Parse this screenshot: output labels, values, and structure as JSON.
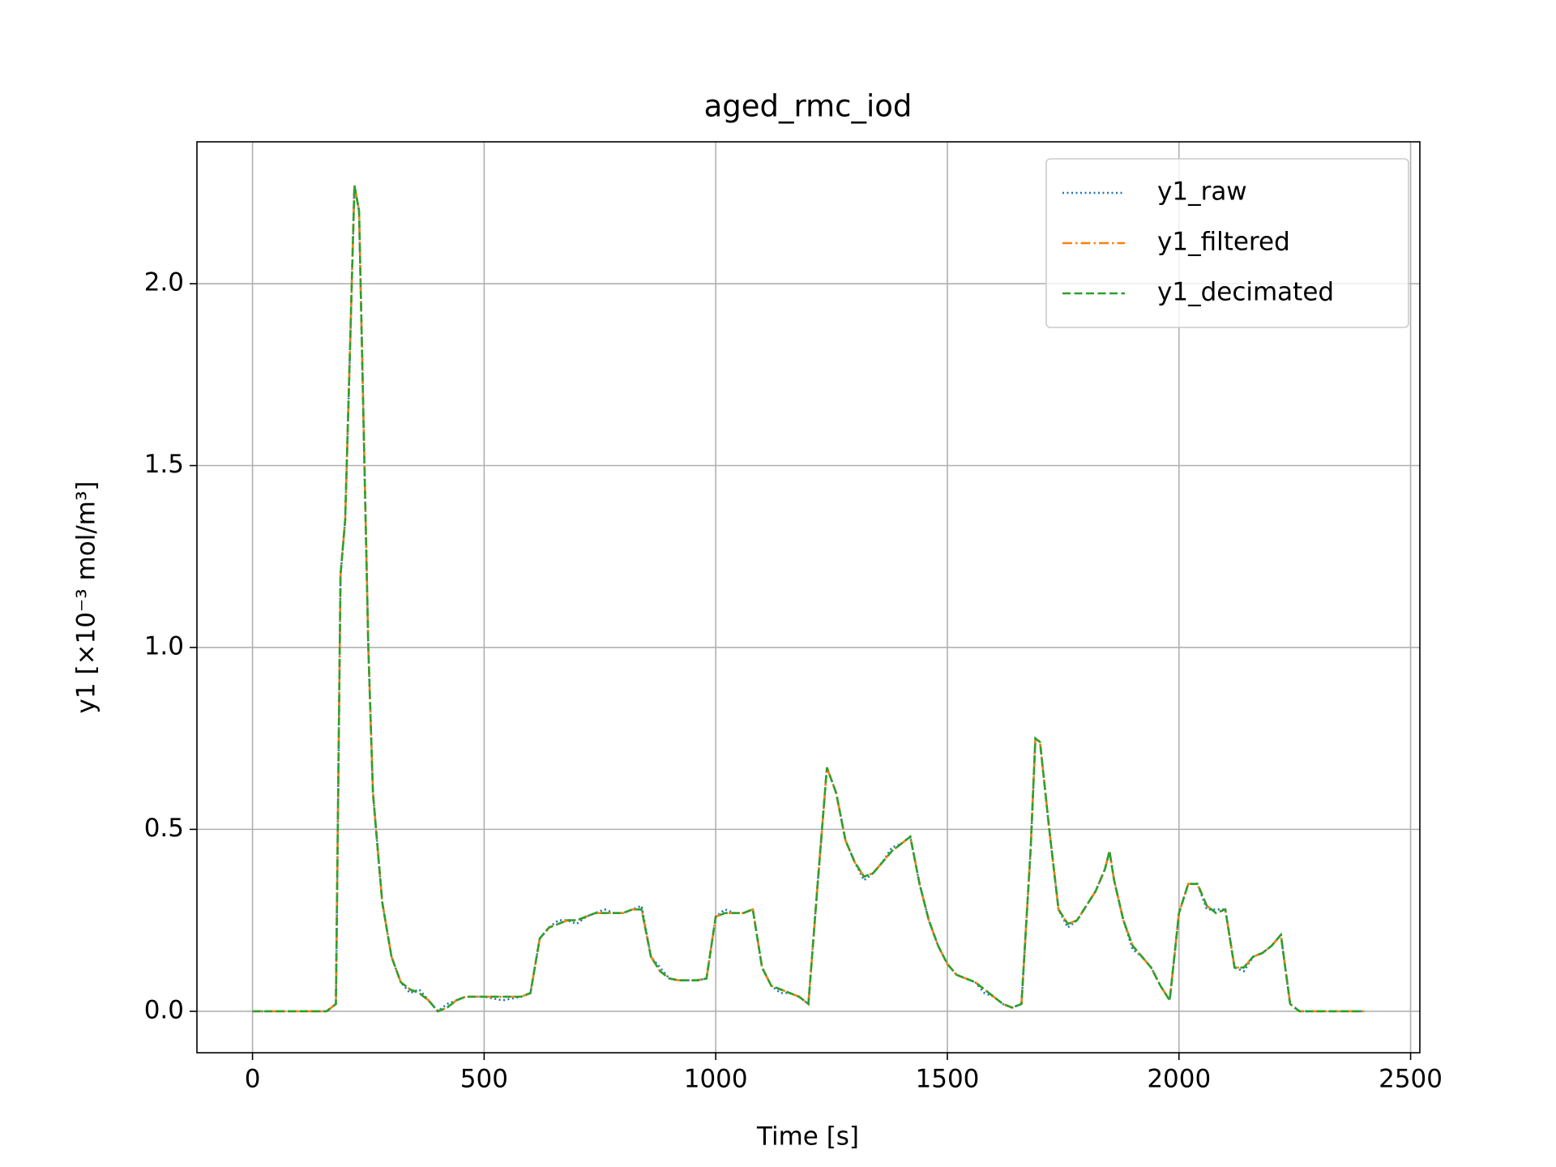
{
  "chart_data": {
    "type": "line",
    "title": "aged_rmc_iod",
    "x_label": "Time [s]",
    "y_label": "y1   [×10⁻³ mol/m³]",
    "xlim": [
      -120,
      2520
    ],
    "ylim": [
      -0.114,
      2.39
    ],
    "xticks": [
      0,
      500,
      1000,
      1500,
      2000,
      2500
    ],
    "yticks": [
      {
        "value": 0,
        "label": "0.0"
      },
      {
        "value": 0.5,
        "label": "0.5"
      },
      {
        "value": 1,
        "label": "1.0"
      },
      {
        "value": 1.5,
        "label": "1.5"
      },
      {
        "value": 2,
        "label": "2.0"
      }
    ],
    "grid": true,
    "legend": "upper right",
    "x": [
      0,
      40,
      80,
      120,
      160,
      180,
      190,
      200,
      210,
      220,
      230,
      240,
      250,
      260,
      280,
      300,
      320,
      340,
      360,
      380,
      400,
      420,
      440,
      460,
      500,
      540,
      580,
      600,
      620,
      640,
      660,
      680,
      700,
      720,
      740,
      760,
      780,
      800,
      820,
      840,
      860,
      880,
      900,
      920,
      940,
      960,
      980,
      1000,
      1020,
      1040,
      1060,
      1080,
      1100,
      1120,
      1140,
      1160,
      1180,
      1200,
      1220,
      1240,
      1260,
      1280,
      1300,
      1320,
      1340,
      1360,
      1380,
      1400,
      1420,
      1440,
      1460,
      1480,
      1500,
      1520,
      1540,
      1560,
      1580,
      1600,
      1620,
      1640,
      1660,
      1680,
      1690,
      1700,
      1720,
      1740,
      1760,
      1780,
      1800,
      1820,
      1840,
      1850,
      1860,
      1880,
      1900,
      1920,
      1940,
      1960,
      1980,
      2000,
      2020,
      2040,
      2060,
      2080,
      2100,
      2120,
      2140,
      2160,
      2180,
      2200,
      2220,
      2240,
      2260,
      2300,
      2350,
      2400
    ],
    "series": [
      {
        "name": "y1_raw",
        "color": "#1f77b4",
        "linestyle": "dotted",
        "values": [
          0,
          0,
          0,
          0,
          0,
          0.02,
          1.2,
          1.35,
          1.8,
          2.27,
          2.2,
          1.6,
          1.0,
          0.6,
          0.3,
          0.15,
          0.08,
          0.05,
          0.06,
          0.03,
          0.0,
          0.02,
          0.03,
          0.04,
          0.04,
          0.03,
          0.04,
          0.05,
          0.2,
          0.23,
          0.25,
          0.25,
          0.24,
          0.26,
          0.27,
          0.28,
          0.27,
          0.27,
          0.28,
          0.29,
          0.15,
          0.12,
          0.09,
          0.085,
          0.085,
          0.085,
          0.09,
          0.26,
          0.28,
          0.27,
          0.27,
          0.28,
          0.12,
          0.07,
          0.05,
          0.05,
          0.04,
          0.02,
          0.35,
          0.67,
          0.6,
          0.47,
          0.41,
          0.36,
          0.38,
          0.41,
          0.45,
          0.46,
          0.48,
          0.35,
          0.25,
          0.18,
          0.13,
          0.1,
          0.09,
          0.08,
          0.05,
          0.04,
          0.02,
          0.01,
          0.02,
          0.45,
          0.75,
          0.74,
          0.5,
          0.28,
          0.23,
          0.25,
          0.29,
          0.33,
          0.39,
          0.44,
          0.36,
          0.25,
          0.17,
          0.15,
          0.12,
          0.07,
          0.03,
          0.27,
          0.35,
          0.35,
          0.28,
          0.28,
          0.28,
          0.12,
          0.11,
          0.15,
          0.16,
          0.18,
          0.21,
          0.02,
          0,
          0,
          0,
          0
        ]
      },
      {
        "name": "y1_filtered",
        "color": "#ff7f0e",
        "linestyle": "dashdot",
        "values": [
          0,
          0,
          0,
          0,
          0,
          0.02,
          1.2,
          1.35,
          1.8,
          2.27,
          2.2,
          1.6,
          1.0,
          0.6,
          0.3,
          0.15,
          0.08,
          0.06,
          0.05,
          0.03,
          0.0,
          0.01,
          0.03,
          0.04,
          0.04,
          0.04,
          0.04,
          0.05,
          0.2,
          0.23,
          0.24,
          0.25,
          0.25,
          0.26,
          0.27,
          0.27,
          0.27,
          0.27,
          0.28,
          0.28,
          0.15,
          0.11,
          0.09,
          0.085,
          0.085,
          0.085,
          0.09,
          0.26,
          0.27,
          0.27,
          0.27,
          0.28,
          0.12,
          0.07,
          0.06,
          0.05,
          0.04,
          0.02,
          0.35,
          0.67,
          0.6,
          0.47,
          0.41,
          0.37,
          0.38,
          0.41,
          0.44,
          0.46,
          0.48,
          0.35,
          0.25,
          0.18,
          0.13,
          0.1,
          0.09,
          0.08,
          0.06,
          0.04,
          0.02,
          0.01,
          0.02,
          0.45,
          0.75,
          0.74,
          0.5,
          0.28,
          0.24,
          0.25,
          0.29,
          0.33,
          0.39,
          0.44,
          0.36,
          0.25,
          0.18,
          0.15,
          0.12,
          0.07,
          0.03,
          0.27,
          0.35,
          0.35,
          0.29,
          0.27,
          0.28,
          0.12,
          0.12,
          0.15,
          0.16,
          0.18,
          0.21,
          0.02,
          0,
          0,
          0,
          0
        ]
      },
      {
        "name": "y1_decimated",
        "color": "#2ca02c",
        "linestyle": "dashed",
        "values": [
          0,
          0,
          0,
          0,
          0,
          0.02,
          1.2,
          1.35,
          1.8,
          2.27,
          2.2,
          1.6,
          1.0,
          0.6,
          0.3,
          0.15,
          0.08,
          0.06,
          0.05,
          0.03,
          0.0,
          0.01,
          0.03,
          0.04,
          0.04,
          0.04,
          0.04,
          0.05,
          0.2,
          0.23,
          0.24,
          0.25,
          0.25,
          0.26,
          0.27,
          0.27,
          0.27,
          0.27,
          0.28,
          0.28,
          0.15,
          0.11,
          0.09,
          0.085,
          0.085,
          0.085,
          0.09,
          0.26,
          0.27,
          0.27,
          0.27,
          0.28,
          0.12,
          0.07,
          0.06,
          0.05,
          0.04,
          0.02,
          0.35,
          0.67,
          0.6,
          0.47,
          0.41,
          0.37,
          0.38,
          0.41,
          0.44,
          0.46,
          0.48,
          0.35,
          0.25,
          0.18,
          0.13,
          0.1,
          0.09,
          0.08,
          0.06,
          0.04,
          0.02,
          0.01,
          0.02,
          0.45,
          0.75,
          0.74,
          0.5,
          0.28,
          0.24,
          0.25,
          0.29,
          0.33,
          0.39,
          0.44,
          0.36,
          0.25,
          0.18,
          0.15,
          0.12,
          0.07,
          0.03,
          0.27,
          0.35,
          0.35,
          0.29,
          0.27,
          0.28,
          0.12,
          0.12,
          0.15,
          0.16,
          0.18,
          0.21,
          0.02,
          0,
          0,
          0,
          0
        ]
      }
    ]
  }
}
